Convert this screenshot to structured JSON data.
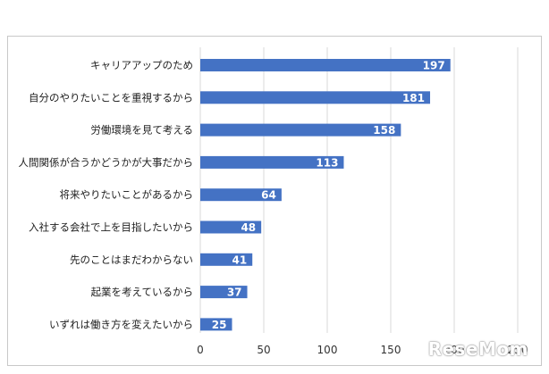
{
  "chart_data": {
    "type": "bar",
    "orientation": "horizontal",
    "categories": [
      "キャリアアップのため",
      "自分のやりたいことを重視するから",
      "労働環境を見て考える",
      "人間関係が合うかどうかが大事だから",
      "将来やりたいことがあるから",
      "入社する会社で上を目指したいから",
      "先のことはまだわからない",
      "起業を考えているから",
      "いずれは働き方を変えたいから"
    ],
    "values": [
      197,
      181,
      158,
      113,
      64,
      48,
      41,
      37,
      25
    ],
    "xlim": [
      0,
      250
    ],
    "xticks": [
      0,
      50,
      100,
      150,
      200,
      250
    ],
    "grid": "vertical",
    "data_labels": "inside-end",
    "bar_color": "#4472c4"
  },
  "watermark": "ReseMom"
}
